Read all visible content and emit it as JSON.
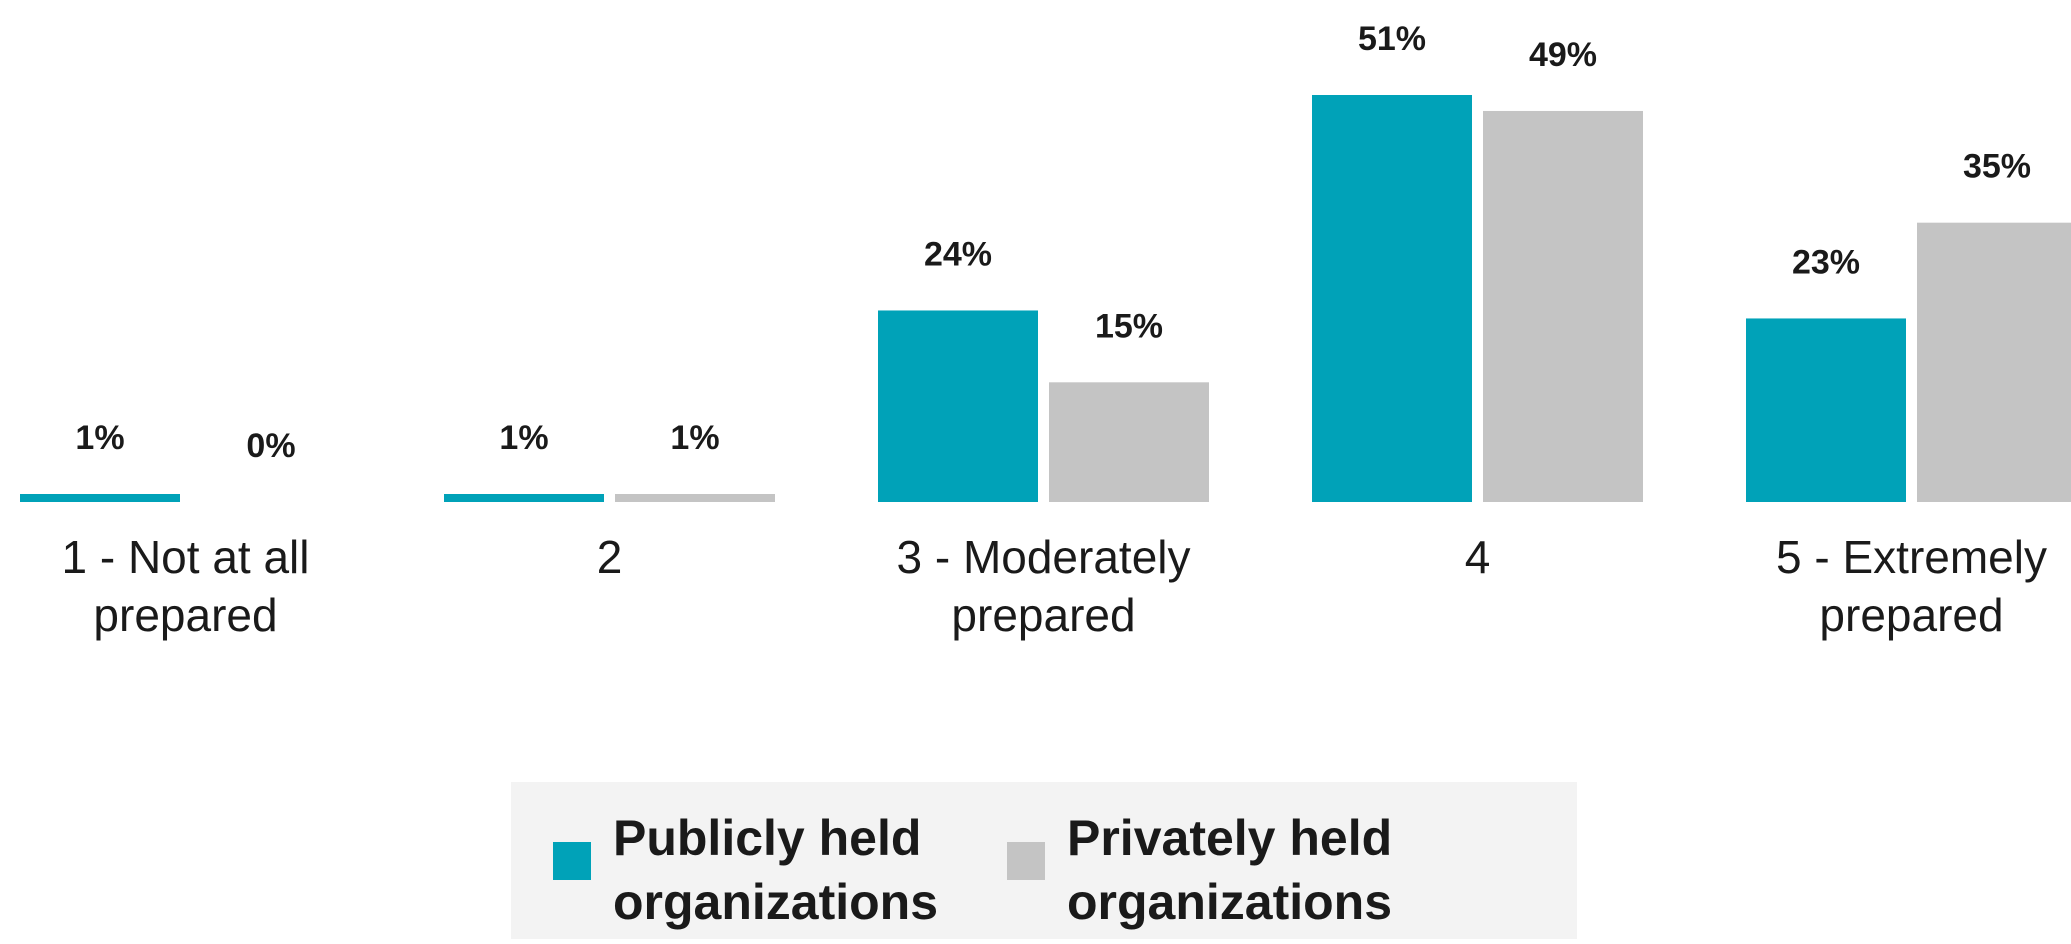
{
  "chart_data": {
    "type": "bar",
    "categories": [
      "1 - Not at all prepared",
      "2",
      "3 - Moderately prepared",
      "4",
      "5 - Extremely prepared"
    ],
    "series": [
      {
        "name": "Publicly held organizations",
        "values": [
          1,
          1,
          24,
          51,
          23
        ],
        "labels": [
          "1%",
          "1%",
          "24%",
          "51%",
          "23%"
        ],
        "color": "#00a2b8"
      },
      {
        "name": "Privately held organizations",
        "values": [
          0,
          1,
          15,
          49,
          35
        ],
        "labels": [
          "0%",
          "1%",
          "15%",
          "49%",
          "35%"
        ],
        "color": "#c4c4c4"
      }
    ],
    "title": "",
    "xlabel": "",
    "ylabel": "",
    "ylim": [
      0,
      51
    ],
    "grid": false,
    "legend_position": "bottom"
  },
  "legend": {
    "public_label": "Publicly held organizations",
    "private_label": "Privately held organizations",
    "public_color": "#00a2b8",
    "private_color": "#c4c4c4",
    "background": "#f3f3f3"
  }
}
